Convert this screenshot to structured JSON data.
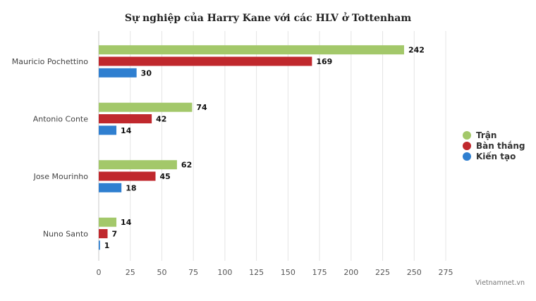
{
  "chart_data": {
    "type": "bar",
    "orientation": "horizontal",
    "title": "Sự nghiệp của Harry Kane với các HLV ở Tottenham",
    "categories": [
      "Mauricio Pochettino",
      "Antonio Conte",
      "Jose Mourinho",
      "Nuno Santo"
    ],
    "series": [
      {
        "name": "Trận",
        "color": "#a3c86a",
        "values": [
          242,
          74,
          62,
          14
        ]
      },
      {
        "name": "Bàn thắng",
        "color": "#c0282d",
        "values": [
          169,
          42,
          45,
          7
        ]
      },
      {
        "name": "Kiến tạo",
        "color": "#2f7fd0",
        "values": [
          30,
          14,
          18,
          1
        ]
      }
    ],
    "xlim": [
      0,
      275
    ],
    "xticks": [
      "0",
      "25",
      "50",
      "75",
      "100",
      "125",
      "150",
      "175",
      "200",
      "225",
      "250",
      "275"
    ],
    "grid": true,
    "legend_position": "right"
  },
  "credit": "Vietnamnet.vn"
}
